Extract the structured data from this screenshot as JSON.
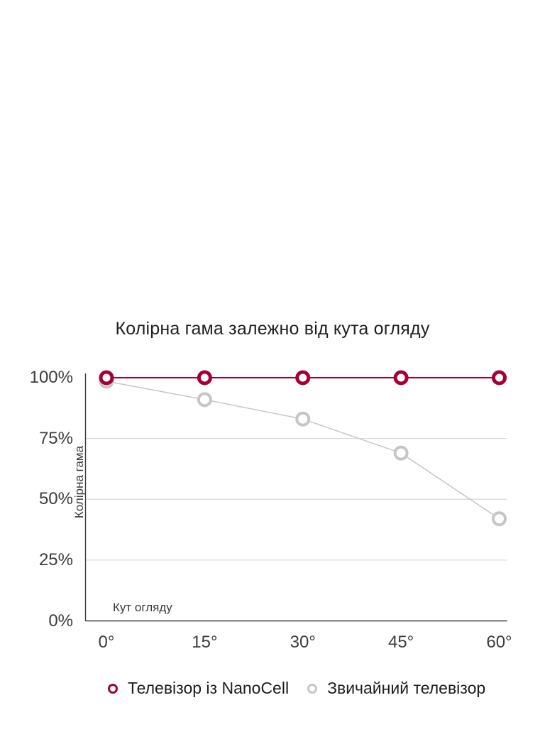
{
  "page": {
    "background": "#ffffff"
  },
  "colors": {
    "accent": "#a50034",
    "regular_series": "#c6c6c6",
    "gridline": "#dadada",
    "axis": "#3c3c3c",
    "title_text": "#1f1f1f",
    "tick_text": "#3d3d3d"
  },
  "chart_data": {
    "type": "line",
    "title": "Колірна гама залежно від кута огляду",
    "xlabel": "Кут огляду",
    "ylabel": "Колірна гама",
    "categories": [
      "0°",
      "15°",
      "30°",
      "45°",
      "60°"
    ],
    "x_tick_labels": [
      "0°",
      "15°",
      "30°",
      "45°",
      "60°"
    ],
    "y_ticks": [
      0,
      25,
      50,
      75,
      100
    ],
    "y_tick_labels": [
      "0%",
      "25%",
      "50%",
      "75%",
      "100%"
    ],
    "ylim": [
      0,
      100
    ],
    "grid": "horizontal",
    "legend_position": "bottom",
    "marker_style": "open-circle",
    "series": [
      {
        "name": "Телевізор із NanoCell",
        "color": "#a50034",
        "values": [
          100,
          100,
          100,
          100,
          100
        ]
      },
      {
        "name": "Звичайний телевізор",
        "color": "#c6c6c6",
        "values": [
          100,
          91,
          83,
          69,
          42
        ]
      }
    ]
  }
}
